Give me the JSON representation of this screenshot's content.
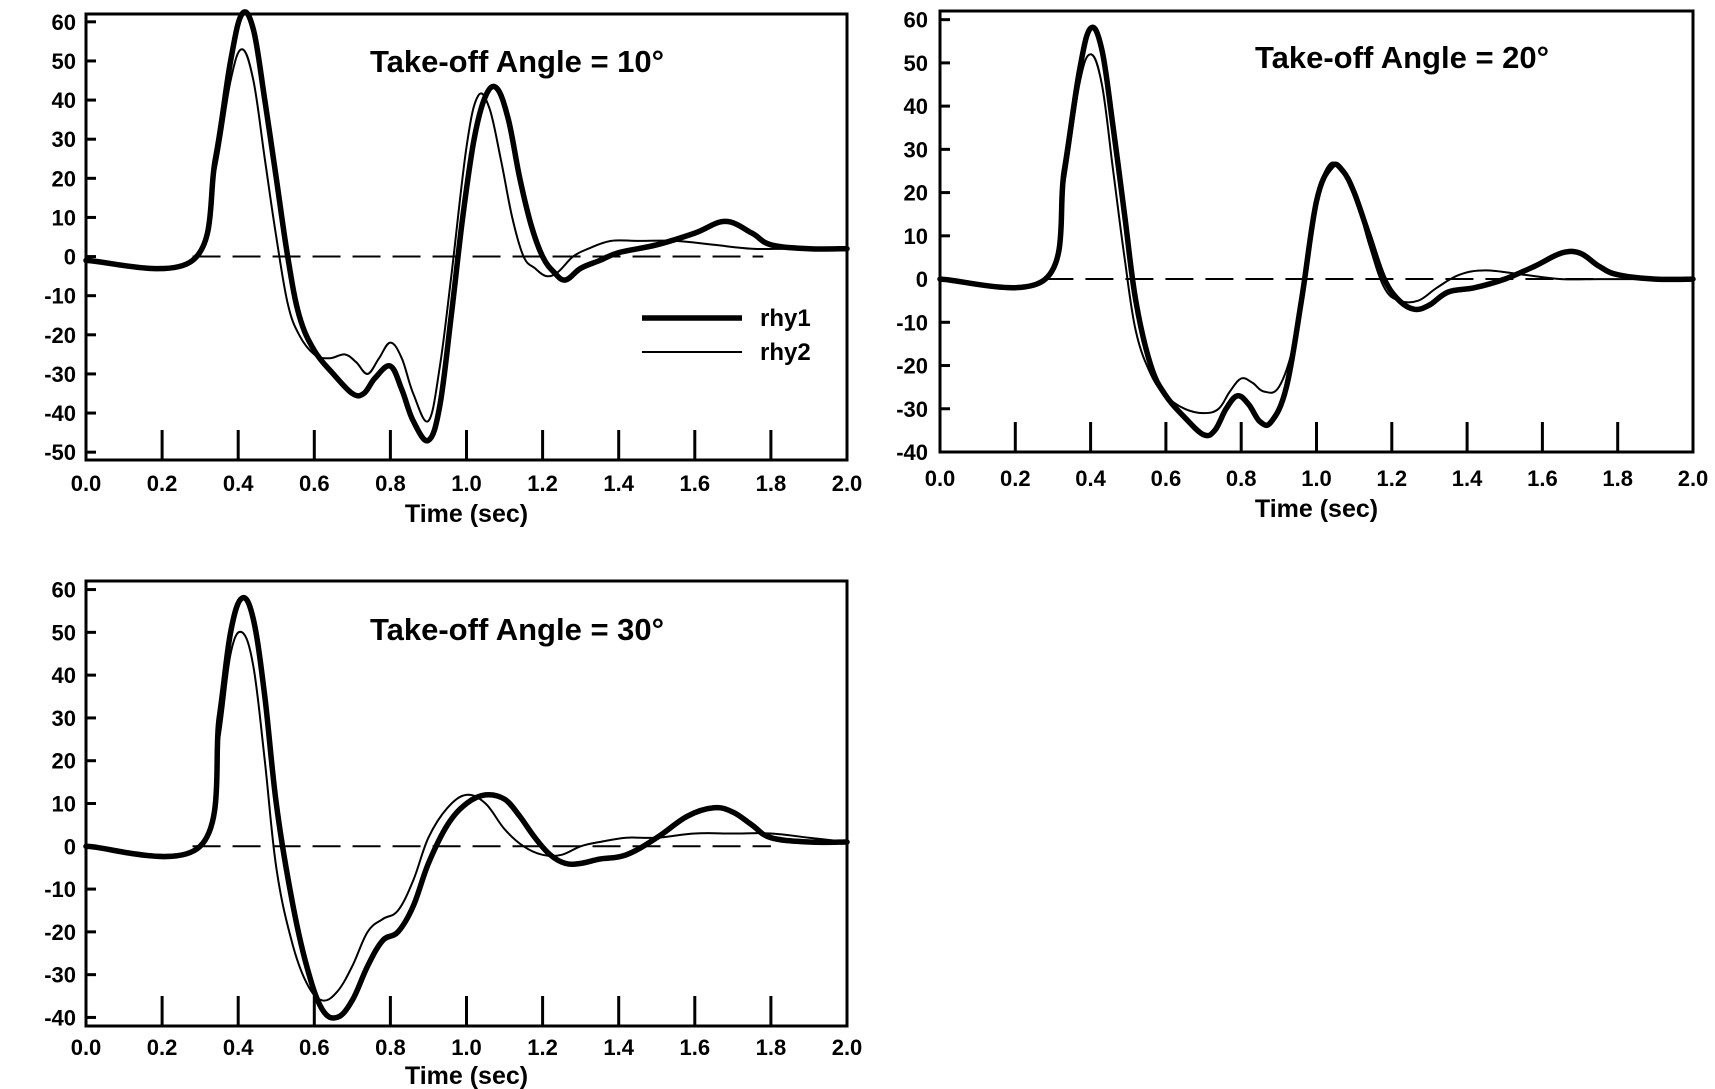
{
  "chart_data": [
    {
      "type": "line",
      "title": "Take-off Angle = 10°",
      "xlabel": "Time (sec)",
      "ylabel": "",
      "xlim": [
        0,
        2.0
      ],
      "ylim": [
        -52,
        62
      ],
      "xticks": [
        "0.0",
        "0.2",
        "0.4",
        "0.6",
        "0.8",
        "1.0",
        "1.2",
        "1.4",
        "1.6",
        "1.8",
        "2.0"
      ],
      "yticks": [
        "60",
        "50",
        "40",
        "30",
        "20",
        "10",
        "0",
        "-10",
        "-20",
        "-30",
        "-40",
        "-50"
      ],
      "ytick_values": [
        60,
        50,
        40,
        30,
        20,
        10,
        0,
        -10,
        -20,
        -30,
        -40,
        -50
      ],
      "legend_position": "right",
      "reference_line": {
        "y": 0,
        "style": "dashed",
        "x_range": [
          0.28,
          1.78
        ]
      },
      "series": [
        {
          "name": "rhy1",
          "style": "thick",
          "x": [
            0,
            0.28,
            0.34,
            0.38,
            0.41,
            0.44,
            0.47,
            0.5,
            0.53,
            0.56,
            0.6,
            0.65,
            0.7,
            0.73,
            0.76,
            0.8,
            0.83,
            0.86,
            0.9,
            0.93,
            0.96,
            0.99,
            1.02,
            1.05,
            1.08,
            1.11,
            1.14,
            1.17,
            1.2,
            1.23,
            1.26,
            1.3,
            1.35,
            1.4,
            1.5,
            1.6,
            1.68,
            1.75,
            1.8,
            1.9,
            2.0
          ],
          "y": [
            -1,
            -1,
            25,
            50,
            62,
            58,
            40,
            20,
            0,
            -15,
            -24,
            -30,
            -35,
            -35,
            -31,
            -28,
            -34,
            -42,
            -47,
            -38,
            -15,
            10,
            30,
            41,
            43,
            35,
            20,
            8,
            0,
            -4,
            -6,
            -3,
            -1,
            1,
            3,
            6,
            9,
            6,
            3,
            2,
            2
          ]
        },
        {
          "name": "rhy2",
          "style": "thin",
          "x": [
            0,
            0.28,
            0.34,
            0.38,
            0.41,
            0.44,
            0.47,
            0.5,
            0.53,
            0.56,
            0.6,
            0.64,
            0.68,
            0.71,
            0.74,
            0.77,
            0.8,
            0.83,
            0.86,
            0.9,
            0.93,
            0.96,
            1.0,
            1.03,
            1.06,
            1.09,
            1.12,
            1.15,
            1.18,
            1.21,
            1.24,
            1.28,
            1.32,
            1.38,
            1.45,
            1.55,
            1.65,
            1.75,
            1.85,
            2.0
          ],
          "y": [
            -1,
            -1,
            22,
            45,
            53,
            45,
            25,
            5,
            -12,
            -20,
            -25,
            -26,
            -25,
            -27,
            -30,
            -26,
            -22,
            -26,
            -35,
            -42,
            -28,
            -5,
            28,
            41,
            38,
            25,
            10,
            0,
            -3,
            -5,
            -4,
            0,
            2,
            4,
            4,
            4,
            3,
            2,
            2,
            2
          ]
        }
      ]
    },
    {
      "type": "line",
      "title": "Take-off Angle = 20°",
      "xlabel": "Time (sec)",
      "ylabel": "",
      "xlim": [
        0,
        2.0
      ],
      "ylim": [
        -40,
        62
      ],
      "xticks": [
        "0.0",
        "0.2",
        "0.4",
        "0.6",
        "0.8",
        "1.0",
        "1.2",
        "1.4",
        "1.6",
        "1.8",
        "2.0"
      ],
      "yticks": [
        "60",
        "50",
        "40",
        "30",
        "20",
        "10",
        "0",
        "-10",
        "-20",
        "-30",
        "-40"
      ],
      "ytick_values": [
        60,
        50,
        40,
        30,
        20,
        10,
        0,
        -10,
        -20,
        -30,
        -40
      ],
      "reference_line": {
        "y": 0,
        "style": "dashed",
        "x_range": [
          0.28,
          1.75
        ]
      },
      "series": [
        {
          "name": "rhy1",
          "style": "thick",
          "x": [
            0,
            0.28,
            0.33,
            0.37,
            0.4,
            0.43,
            0.46,
            0.49,
            0.52,
            0.56,
            0.6,
            0.65,
            0.7,
            0.73,
            0.76,
            0.79,
            0.82,
            0.85,
            0.88,
            0.92,
            0.96,
            1.0,
            1.04,
            1.07,
            1.1,
            1.14,
            1.18,
            1.22,
            1.26,
            1.3,
            1.35,
            1.42,
            1.5,
            1.58,
            1.65,
            1.7,
            1.75,
            1.8,
            1.9,
            2.0
          ],
          "y": [
            0,
            0,
            25,
            48,
            58,
            53,
            35,
            15,
            -5,
            -20,
            -27,
            -32,
            -36,
            -35,
            -30,
            -27,
            -29,
            -33,
            -33,
            -25,
            -5,
            18,
            26,
            25,
            20,
            10,
            0,
            -5,
            -7,
            -6,
            -3,
            -2,
            0,
            3,
            6,
            6,
            3,
            1,
            0,
            0
          ]
        },
        {
          "name": "rhy2",
          "style": "thin",
          "x": [
            0,
            0.28,
            0.33,
            0.37,
            0.4,
            0.43,
            0.46,
            0.49,
            0.52,
            0.56,
            0.6,
            0.65,
            0.7,
            0.74,
            0.77,
            0.8,
            0.83,
            0.86,
            0.9,
            0.94,
            0.97,
            1.0,
            1.03,
            1.06,
            1.1,
            1.14,
            1.18,
            1.22,
            1.27,
            1.32,
            1.38,
            1.45,
            1.55,
            1.65,
            1.75,
            1.85,
            2.0
          ],
          "y": [
            0,
            0,
            22,
            45,
            52,
            45,
            25,
            5,
            -12,
            -22,
            -27,
            -30,
            -31,
            -30,
            -26,
            -23,
            -24,
            -26,
            -25,
            -15,
            0,
            18,
            26,
            26,
            20,
            8,
            -2,
            -5,
            -5,
            -2,
            1,
            2,
            1,
            0,
            0,
            0,
            0
          ]
        }
      ]
    },
    {
      "type": "line",
      "title": "Take-off Angle = 30°",
      "xlabel": "Time (sec)",
      "ylabel": "",
      "xlim": [
        0,
        2.0
      ],
      "ylim": [
        -42,
        62
      ],
      "xticks": [
        "0.0",
        "0.2",
        "0.4",
        "0.6",
        "0.8",
        "1.0",
        "1.2",
        "1.4",
        "1.6",
        "1.8",
        "2.0"
      ],
      "yticks": [
        "60",
        "50",
        "40",
        "30",
        "20",
        "10",
        "0",
        "-10",
        "-20",
        "-30",
        "-40"
      ],
      "ytick_values": [
        60,
        50,
        40,
        30,
        20,
        10,
        0,
        -10,
        -20,
        -30,
        -40
      ],
      "reference_line": {
        "y": 0,
        "style": "dashed",
        "x_range": [
          0.28,
          1.8
        ]
      },
      "series": [
        {
          "name": "rhy1",
          "style": "thick",
          "x": [
            0,
            0.3,
            0.35,
            0.38,
            0.41,
            0.44,
            0.47,
            0.5,
            0.54,
            0.58,
            0.62,
            0.66,
            0.7,
            0.74,
            0.78,
            0.82,
            0.86,
            0.9,
            0.95,
            1.0,
            1.05,
            1.1,
            1.14,
            1.18,
            1.22,
            1.26,
            1.3,
            1.35,
            1.42,
            1.5,
            1.58,
            1.65,
            1.7,
            1.75,
            1.8,
            1.9,
            2.0
          ],
          "y": [
            0,
            0,
            30,
            50,
            58,
            53,
            35,
            10,
            -12,
            -28,
            -38,
            -40,
            -36,
            -28,
            -22,
            -20,
            -14,
            -4,
            5,
            10,
            12,
            11,
            7,
            2,
            -2,
            -4,
            -4,
            -3,
            -2,
            2,
            7,
            9,
            8,
            5,
            2,
            1,
            1
          ]
        },
        {
          "name": "rhy2",
          "style": "thin",
          "x": [
            0,
            0.3,
            0.35,
            0.38,
            0.41,
            0.44,
            0.47,
            0.5,
            0.54,
            0.58,
            0.62,
            0.66,
            0.7,
            0.74,
            0.78,
            0.82,
            0.86,
            0.9,
            0.95,
            1.0,
            1.05,
            1.1,
            1.15,
            1.2,
            1.25,
            1.3,
            1.35,
            1.42,
            1.5,
            1.6,
            1.7,
            1.8,
            1.9,
            2.0
          ],
          "y": [
            0,
            0,
            25,
            45,
            50,
            42,
            20,
            -5,
            -22,
            -32,
            -36,
            -34,
            -28,
            -20,
            -17,
            -15,
            -8,
            2,
            9,
            12,
            10,
            4,
            0,
            -2,
            -2,
            0,
            1,
            2,
            2,
            3,
            3,
            3,
            2,
            1
          ]
        }
      ]
    }
  ]
}
